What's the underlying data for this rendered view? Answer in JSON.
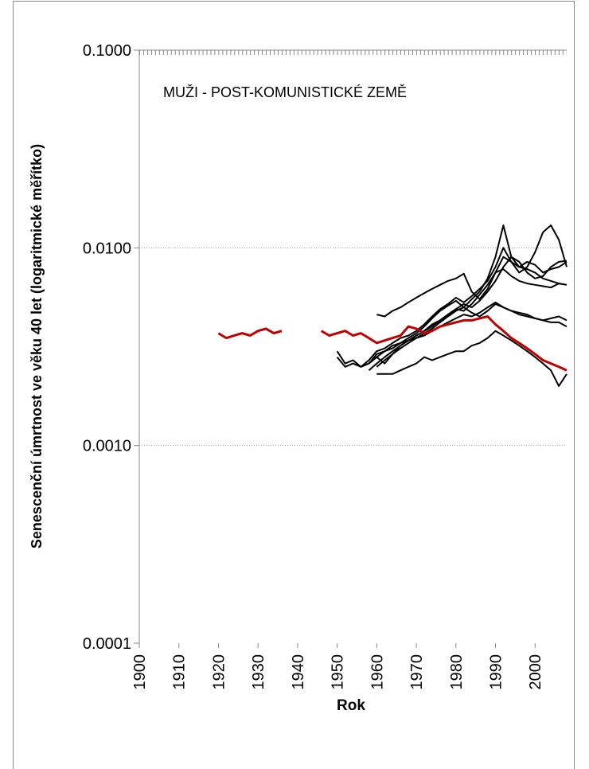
{
  "chart_data": {
    "type": "line",
    "annotation": "MUŽI - POST-KOMUNISTICKÉ ZEMĚ",
    "xlabel": "Rok",
    "ylabel": "Senescenční úmrtnost ve věku 40 let (logaritmické měřítko)",
    "x": [
      1920,
      1922,
      1924,
      1926,
      1928,
      1930,
      1932,
      1934,
      1936,
      1938,
      1940,
      1942,
      1944,
      1946,
      1948,
      1950,
      1952,
      1954,
      1956,
      1958,
      1960,
      1962,
      1964,
      1966,
      1968,
      1970,
      1972,
      1974,
      1976,
      1978,
      1980,
      1982,
      1984,
      1986,
      1988,
      1990,
      1992,
      1994,
      1996,
      1998,
      2000,
      2002,
      2004,
      2006,
      2008
    ],
    "xlim": [
      1900,
      2008
    ],
    "xticks": [
      1900,
      1910,
      1920,
      1930,
      1940,
      1950,
      1960,
      1970,
      1980,
      1990,
      2000
    ],
    "ylim": [
      0.0001,
      0.1
    ],
    "yticks": [
      {
        "value": 0.0001,
        "label": "0.0001"
      },
      {
        "value": 0.001,
        "label": "0.0010"
      },
      {
        "value": 0.01,
        "label": "0.0100"
      },
      {
        "value": 0.1,
        "label": "0.1000"
      }
    ],
    "ylog": true,
    "grid": true,
    "series": [
      {
        "color": "#000000",
        "values": [
          null,
          null,
          null,
          null,
          null,
          null,
          null,
          null,
          null,
          null,
          null,
          null,
          null,
          null,
          null,
          null,
          null,
          null,
          null,
          null,
          0.0046,
          0.0045,
          0.0048,
          0.005,
          0.0053,
          0.0056,
          0.0059,
          0.0062,
          0.0065,
          0.0068,
          0.007,
          0.0074,
          0.006,
          0.0055,
          0.0062,
          0.0075,
          0.009,
          0.0085,
          0.008,
          0.0078,
          0.0075,
          0.007,
          0.0068,
          0.0066,
          0.0065
        ]
      },
      {
        "color": "#000000",
        "values": [
          null,
          null,
          null,
          null,
          null,
          null,
          null,
          null,
          null,
          null,
          null,
          null,
          null,
          null,
          null,
          0.003,
          0.0026,
          0.0027,
          0.0025,
          0.0026,
          0.0029,
          0.003,
          0.0032,
          0.0033,
          0.0035,
          0.0037,
          0.004,
          0.0044,
          0.0048,
          0.0051,
          0.0054,
          0.005,
          0.0055,
          0.006,
          0.007,
          0.009,
          0.013,
          0.009,
          0.008,
          0.0085,
          0.0082,
          0.0075,
          0.0078,
          0.008,
          0.0085
        ]
      },
      {
        "color": "#000000",
        "values": [
          null,
          null,
          null,
          null,
          null,
          null,
          null,
          null,
          null,
          null,
          null,
          null,
          null,
          null,
          null,
          0.0028,
          0.0025,
          0.0026,
          0.0025,
          0.0027,
          0.003,
          0.0031,
          0.0033,
          0.0035,
          0.0036,
          0.0038,
          0.0041,
          0.0045,
          0.0049,
          0.0052,
          0.0056,
          0.0053,
          0.0057,
          0.0062,
          0.0068,
          0.008,
          0.01,
          0.0085,
          0.0075,
          0.008,
          0.0095,
          0.012,
          0.013,
          0.011,
          0.008
        ]
      },
      {
        "color": "#000000",
        "values": [
          null,
          null,
          null,
          null,
          null,
          null,
          null,
          null,
          null,
          null,
          null,
          null,
          null,
          null,
          null,
          null,
          null,
          null,
          null,
          null,
          0.0025,
          0.0027,
          0.0029,
          0.0031,
          0.0033,
          0.0035,
          0.0037,
          0.0039,
          0.0042,
          0.0045,
          0.0048,
          0.005,
          0.0047,
          0.0045,
          0.0048,
          0.0052,
          0.005,
          0.0048,
          0.0047,
          0.0046,
          0.0044,
          0.0043,
          0.0042,
          0.0042,
          0.004
        ]
      },
      {
        "color": "#000000",
        "values": [
          null,
          null,
          null,
          null,
          null,
          null,
          null,
          null,
          null,
          null,
          null,
          null,
          null,
          null,
          null,
          null,
          null,
          null,
          null,
          null,
          0.0023,
          0.0023,
          0.0023,
          0.0024,
          0.0025,
          0.0026,
          0.0028,
          0.0027,
          0.0028,
          0.0029,
          0.003,
          0.003,
          0.0032,
          0.0033,
          0.0035,
          0.0038,
          0.0036,
          0.0034,
          0.0032,
          0.003,
          0.0028,
          0.0026,
          0.0024,
          0.002,
          0.0023
        ]
      },
      {
        "color": "#000000",
        "values": [
          null,
          null,
          null,
          null,
          null,
          null,
          null,
          null,
          null,
          null,
          null,
          null,
          null,
          null,
          null,
          null,
          null,
          null,
          null,
          0.0026,
          0.0028,
          0.0026,
          0.0029,
          0.0032,
          0.0034,
          0.0036,
          0.0038,
          0.004,
          0.0043,
          0.0046,
          0.0049,
          0.0052,
          0.005,
          0.0054,
          0.006,
          0.0068,
          0.008,
          0.009,
          0.0085,
          0.0075,
          0.007,
          0.0072,
          0.008,
          0.0085,
          0.0086
        ]
      },
      {
        "color": "#000000",
        "values": [
          null,
          null,
          null,
          null,
          null,
          null,
          null,
          null,
          null,
          null,
          null,
          null,
          null,
          null,
          null,
          null,
          null,
          null,
          null,
          0.0024,
          0.0026,
          0.0028,
          0.003,
          0.0032,
          0.0034,
          0.0035,
          0.0036,
          0.0038,
          0.004,
          0.0042,
          0.0044,
          0.0046,
          0.0045,
          0.0047,
          0.005,
          0.0053,
          0.005,
          0.0048,
          0.0046,
          0.0045,
          0.0044,
          0.0043,
          0.0044,
          0.0045,
          0.0043
        ]
      },
      {
        "color": "#000000",
        "values": [
          null,
          null,
          null,
          null,
          null,
          null,
          null,
          null,
          null,
          null,
          null,
          null,
          null,
          null,
          null,
          null,
          null,
          null,
          0.0025,
          0.0026,
          0.0028,
          0.003,
          0.0031,
          0.0033,
          0.0034,
          0.0036,
          0.0038,
          0.0041,
          0.0043,
          0.0046,
          0.0049,
          0.0048,
          0.0052,
          0.0058,
          0.0065,
          0.0075,
          0.0078,
          0.0072,
          0.0068,
          0.0066,
          0.0065,
          0.0064,
          0.0063,
          0.0066,
          0.0065
        ]
      },
      {
        "color": "#c00000",
        "values": [
          0.0037,
          0.0035,
          0.0036,
          0.0037,
          0.0036,
          0.0038,
          0.0039,
          0.0037,
          0.0038,
          null,
          null,
          null,
          null,
          0.0038,
          0.0036,
          0.0037,
          0.0038,
          0.0036,
          0.0037,
          0.0035,
          0.0033,
          0.0034,
          0.0035,
          0.0036,
          0.004,
          0.0039,
          0.0037,
          0.0038,
          0.004,
          0.0041,
          0.0042,
          0.0043,
          0.0043,
          0.0044,
          0.0045,
          0.0041,
          0.0038,
          0.0035,
          0.0033,
          0.0031,
          0.0029,
          0.0027,
          0.0026,
          0.0025,
          0.0024
        ]
      }
    ]
  }
}
